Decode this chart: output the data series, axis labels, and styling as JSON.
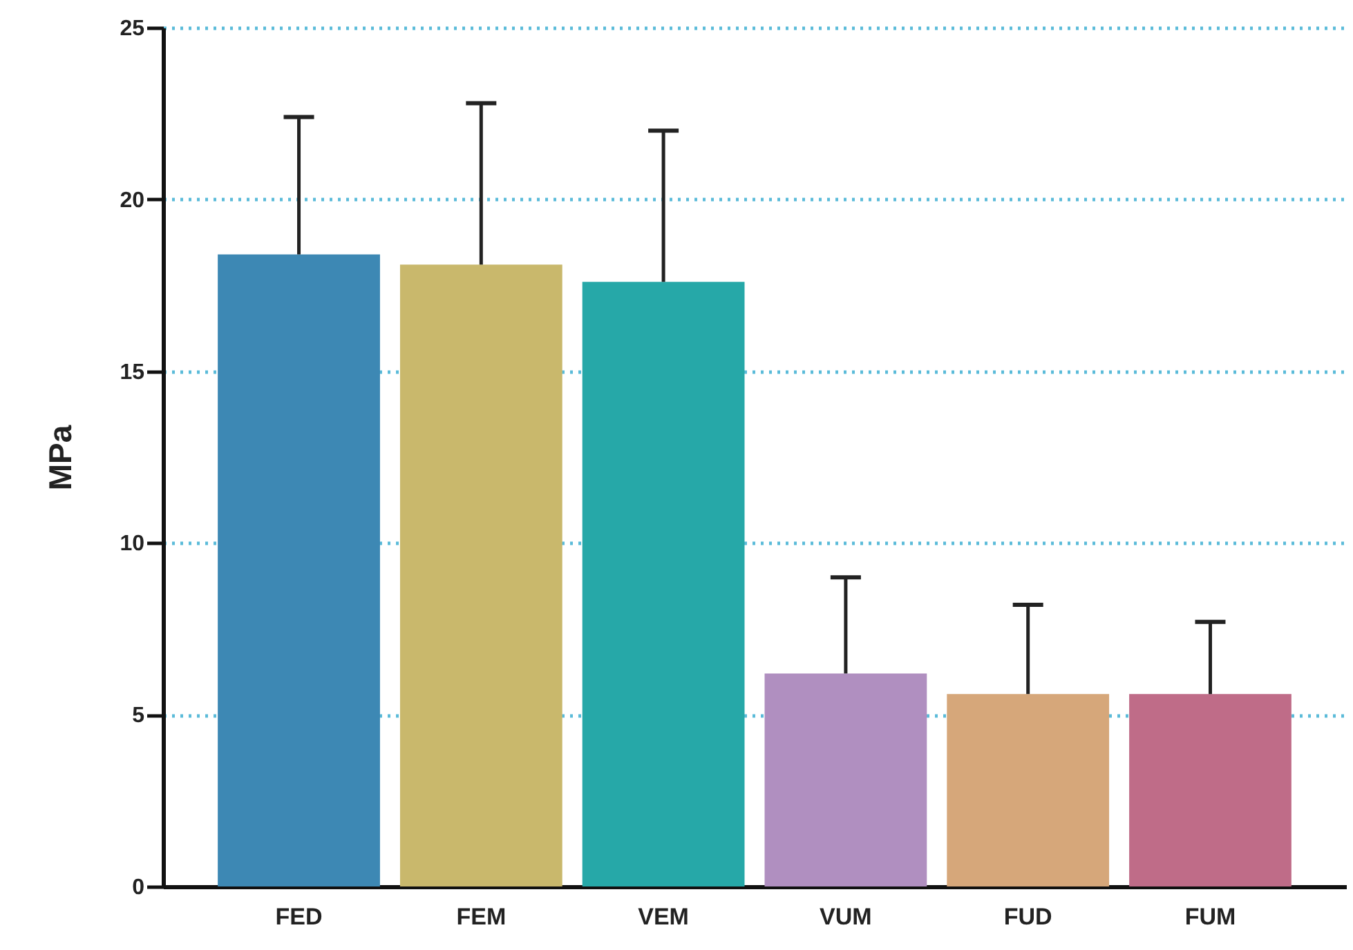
{
  "chart_data": {
    "type": "bar",
    "ylabel": "MPa",
    "categories": [
      "FED",
      "FEM",
      "VEM",
      "VUM",
      "FUD",
      "FUM"
    ],
    "values": [
      18.4,
      18.1,
      17.6,
      6.2,
      5.6,
      5.6
    ],
    "errors": [
      [
        18.4,
        22.4
      ],
      [
        18.1,
        22.8
      ],
      [
        17.6,
        22.0
      ],
      [
        6.2,
        9.0
      ],
      [
        5.6,
        8.2
      ],
      [
        5.6,
        7.7
      ]
    ],
    "colors": [
      "#3d88b4",
      "#c9b86c",
      "#26a8a8",
      "#b08fc0",
      "#d6a77a",
      "#bf6c88"
    ],
    "ylim": [
      0,
      25
    ],
    "yticks": [
      0,
      5,
      10,
      15,
      20,
      25
    ],
    "grid": "y"
  }
}
